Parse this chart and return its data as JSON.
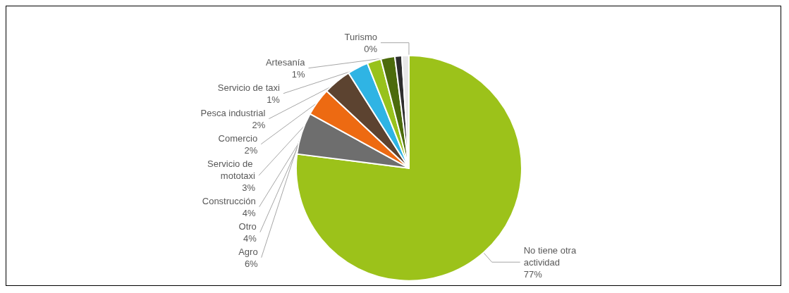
{
  "chart_data": {
    "type": "pie",
    "categories": [
      "No tiene otra actividad",
      "Agro",
      "Otro",
      "Construcción",
      "Servicio de mototaxi",
      "Comercio",
      "Pesca industrial",
      "Servicio de taxi",
      "Artesanía",
      "Turismo"
    ],
    "values": [
      77,
      6,
      4,
      4,
      3,
      2,
      2,
      1,
      1,
      0
    ],
    "colors": [
      "#9cc21a",
      "#6e6e6e",
      "#ed6a12",
      "#5c4330",
      "#2fb4e4",
      "#98c21c",
      "#4c6b0c",
      "#2e2e2e",
      "#e8e8e8",
      "#c8c8c8"
    ],
    "value_labels": [
      "77%",
      "6%",
      "4%",
      "4%",
      "3%",
      "2%",
      "2%",
      "1%",
      "1%",
      "0%"
    ],
    "legend": false
  }
}
